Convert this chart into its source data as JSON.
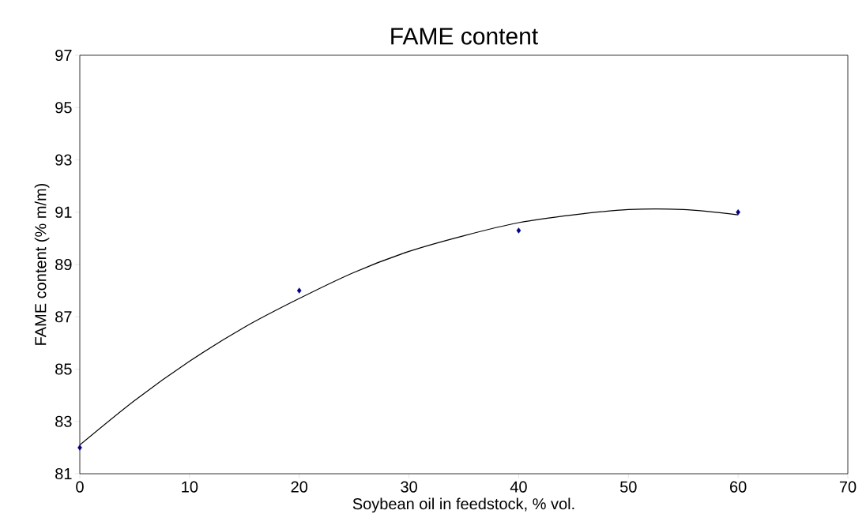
{
  "chart_data": {
    "type": "scatter",
    "title": "FAME content",
    "xlabel": "Soybean oil in feedstock, % vol.",
    "ylabel": "FAME content (% m/m)",
    "xlim": [
      0,
      70
    ],
    "xticks": [
      0,
      10,
      20,
      30,
      40,
      50,
      60,
      70
    ],
    "ylim": [
      81,
      97
    ],
    "yticks": [
      81,
      83,
      85,
      87,
      89,
      91,
      93,
      95,
      97
    ],
    "grid": false,
    "series": [
      {
        "color": "#000080",
        "marker": "diamond",
        "x": [
          0,
          20,
          40,
          60
        ],
        "values": [
          82,
          88,
          90.3,
          91
        ]
      },
      {
        "type": "line",
        "color": "#000000",
        "marker": "none",
        "line_style": "solid",
        "x": [
          0,
          5,
          10,
          15,
          20,
          25,
          30,
          35,
          40,
          45,
          50,
          55,
          60
        ],
        "values": [
          82.1,
          83.8,
          85.3,
          86.6,
          87.7,
          88.7,
          89.5,
          90.1,
          90.6,
          90.9,
          91.1,
          91.1,
          90.9
        ]
      }
    ]
  }
}
